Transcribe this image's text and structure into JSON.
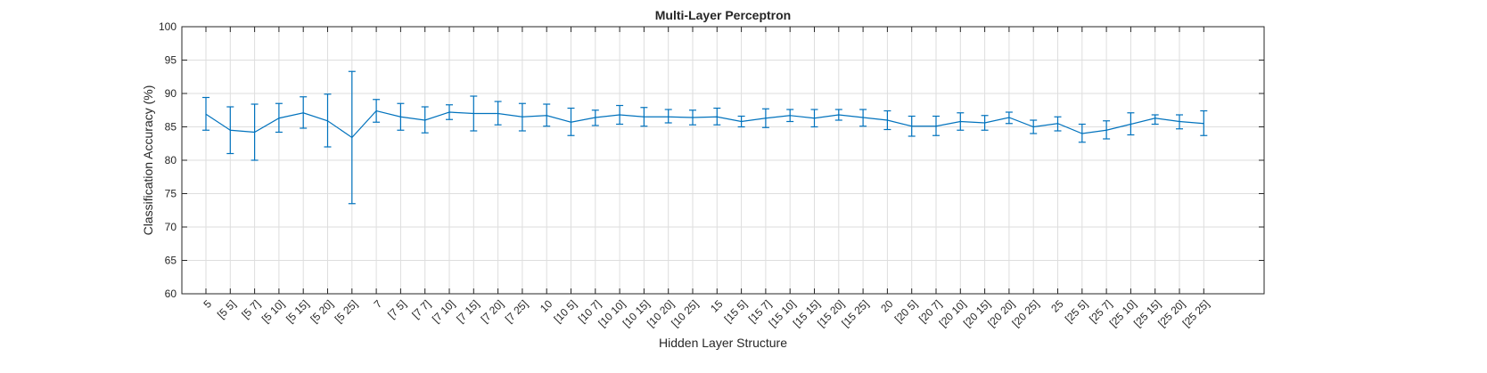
{
  "chart_data": {
    "type": "line",
    "title": "Multi-Layer Perceptron",
    "xlabel": "Hidden Layer Structure",
    "ylabel": "Classification Accuracy (%)",
    "ylim": [
      60,
      100
    ],
    "yticks": [
      60,
      65,
      70,
      75,
      80,
      85,
      90,
      95,
      100
    ],
    "grid": true,
    "series_color": "#0072BD",
    "categories": [
      "5",
      "[5 5]",
      "[5 7]",
      "[5 10]",
      "[5 15]",
      "[5 20]",
      "[5 25]",
      "7",
      "[7 5]",
      "[7 7]",
      "[7 10]",
      "[7 15]",
      "[7 20]",
      "[7 25]",
      "10",
      "[10 5]",
      "[10 7]",
      "[10 10]",
      "[10 15]",
      "[10 20]",
      "[10 25]",
      "15",
      "[15 5]",
      "[15 7]",
      "[15 10]",
      "[15 15]",
      "[15 20]",
      "[15 25]",
      "20",
      "[20 5]",
      "[20 7]",
      "[20 10]",
      "[20 15]",
      "[20 20]",
      "[20 25]",
      "25",
      "[25 5]",
      "[25 7]",
      "[25 10]",
      "[25 15]",
      "[25 20]",
      "[25 25]"
    ],
    "series": [
      {
        "values": [
          86.9,
          84.5,
          84.2,
          86.3,
          87.1,
          85.9,
          83.4,
          87.4,
          86.5,
          86.0,
          87.2,
          87.0,
          87.0,
          86.5,
          86.7,
          85.7,
          86.4,
          86.8,
          86.5,
          86.5,
          86.4,
          86.5,
          85.8,
          86.3,
          86.7,
          86.3,
          86.8,
          86.4,
          86.0,
          85.1,
          85.1,
          85.8,
          85.6,
          86.4,
          85.0,
          85.5,
          84.0,
          84.5,
          85.4,
          86.3,
          85.8,
          85.5
        ],
        "lower": [
          84.5,
          81.0,
          80.0,
          84.2,
          84.8,
          82.0,
          73.5,
          85.7,
          84.5,
          84.1,
          86.1,
          84.4,
          85.3,
          84.4,
          85.1,
          83.7,
          85.2,
          85.4,
          85.1,
          85.6,
          85.3,
          85.3,
          85.0,
          84.9,
          85.8,
          85.0,
          86.0,
          85.1,
          84.6,
          83.6,
          83.7,
          84.5,
          84.5,
          85.5,
          84.0,
          84.4,
          82.7,
          83.2,
          83.8,
          85.4,
          84.7,
          83.7
        ],
        "upper": [
          89.4,
          88.0,
          88.4,
          88.5,
          89.5,
          89.9,
          93.3,
          89.1,
          88.5,
          88.0,
          88.3,
          89.6,
          88.8,
          88.5,
          88.4,
          87.8,
          87.5,
          88.2,
          87.9,
          87.6,
          87.5,
          87.8,
          86.6,
          87.7,
          87.6,
          87.6,
          87.6,
          87.6,
          87.4,
          86.6,
          86.6,
          87.1,
          86.7,
          87.2,
          86.0,
          86.5,
          85.4,
          85.9,
          87.1,
          86.8,
          86.8,
          87.4
        ]
      }
    ]
  }
}
